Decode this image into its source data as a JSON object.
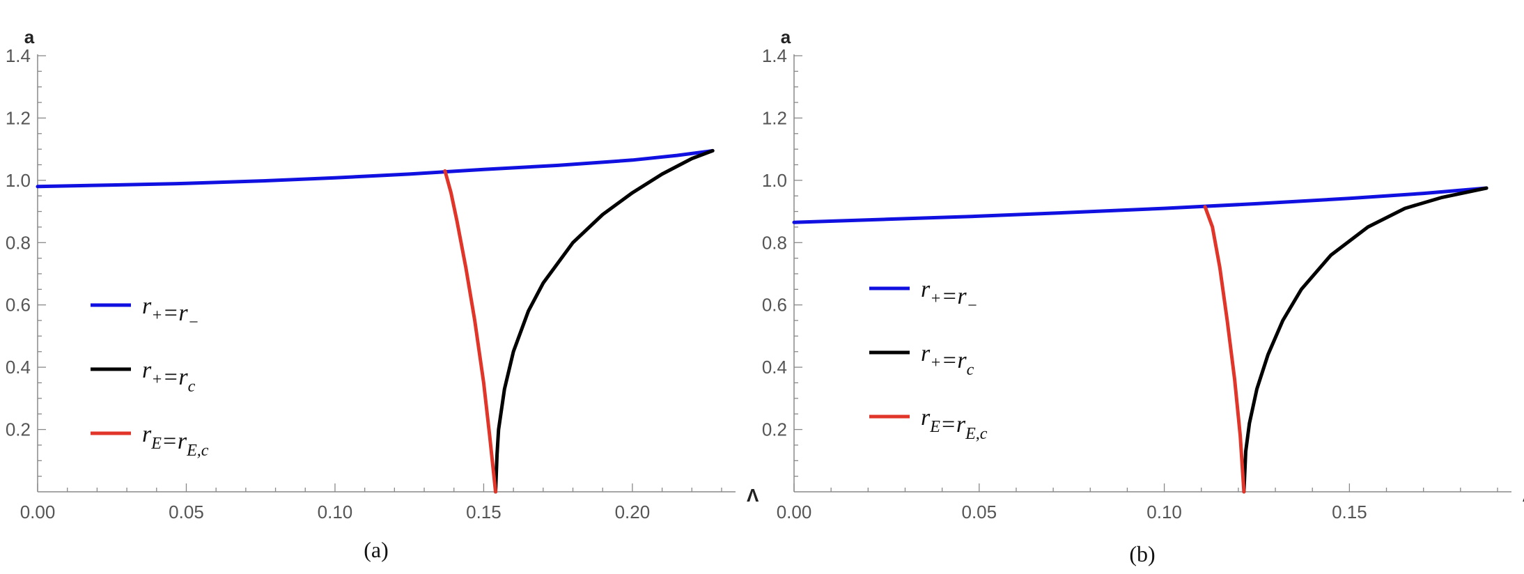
{
  "chart_data": [
    {
      "type": "line",
      "panel_label": "(a)",
      "xlabel": "Λ",
      "ylabel": "a",
      "xlim": [
        0,
        0.23
      ],
      "ylim": [
        0,
        1.4
      ],
      "x_ticks": [
        "0.00",
        "0.05",
        "0.10",
        "0.15",
        "0.20"
      ],
      "x_tick_values": [
        0,
        0.05,
        0.1,
        0.15,
        0.2
      ],
      "y_ticks": [
        "0.2",
        "0.4",
        "0.6",
        "0.8",
        "1.0",
        "1.2",
        "1.4"
      ],
      "y_tick_values": [
        0.2,
        0.4,
        0.6,
        0.8,
        1.0,
        1.2,
        1.4
      ],
      "grid": false,
      "legend_placement": "center-left",
      "series": [
        {
          "legend": {
            "main1": "r",
            "sub1": "+",
            "mid": "=r",
            "sub2": "−"
          },
          "color": "#1010e0",
          "x": [
            0.0,
            0.025,
            0.05,
            0.075,
            0.1,
            0.125,
            0.15,
            0.175,
            0.2,
            0.215,
            0.227
          ],
          "y": [
            0.98,
            0.985,
            0.99,
            0.998,
            1.008,
            1.02,
            1.035,
            1.048,
            1.065,
            1.08,
            1.095
          ]
        },
        {
          "legend": {
            "main1": "r",
            "sub1": "+",
            "mid": "=r",
            "sub2": "c"
          },
          "color": "#000000",
          "x": [
            0.154,
            0.1545,
            0.155,
            0.157,
            0.16,
            0.165,
            0.17,
            0.18,
            0.19,
            0.2,
            0.21,
            0.22,
            0.227
          ],
          "y": [
            0.0,
            0.12,
            0.2,
            0.33,
            0.45,
            0.58,
            0.67,
            0.8,
            0.89,
            0.96,
            1.02,
            1.07,
            1.095
          ]
        },
        {
          "legend": {
            "main1": "r",
            "sub1": "E",
            "mid": "=r",
            "sub2": "E,c"
          },
          "color": "#e03528",
          "x": [
            0.154,
            0.152,
            0.15,
            0.147,
            0.144,
            0.141,
            0.139,
            0.137
          ],
          "y": [
            0.0,
            0.18,
            0.35,
            0.55,
            0.72,
            0.87,
            0.96,
            1.03
          ]
        }
      ]
    },
    {
      "type": "line",
      "panel_label": "(b)",
      "xlabel": "Λ",
      "ylabel": "a",
      "xlim": [
        0,
        0.19
      ],
      "ylim": [
        0,
        1.4
      ],
      "x_ticks": [
        "0.00",
        "0.05",
        "0.10",
        "0.15"
      ],
      "x_tick_values": [
        0,
        0.05,
        0.1,
        0.15
      ],
      "y_ticks": [
        "0.2",
        "0.4",
        "0.6",
        "0.8",
        "1.0",
        "1.2",
        "1.4"
      ],
      "y_tick_values": [
        0.2,
        0.4,
        0.6,
        0.8,
        1.0,
        1.2,
        1.4
      ],
      "grid": false,
      "legend_placement": "center-left",
      "series": [
        {
          "legend": {
            "main1": "r",
            "sub1": "+",
            "mid": "=r",
            "sub2": "−"
          },
          "color": "#1010e0",
          "x": [
            0.0,
            0.025,
            0.05,
            0.075,
            0.1,
            0.125,
            0.15,
            0.17,
            0.187
          ],
          "y": [
            0.865,
            0.875,
            0.885,
            0.897,
            0.91,
            0.925,
            0.942,
            0.958,
            0.975
          ]
        },
        {
          "legend": {
            "main1": "r",
            "sub1": "+",
            "mid": "=r",
            "sub2": "c"
          },
          "color": "#000000",
          "x": [
            0.1215,
            0.122,
            0.123,
            0.125,
            0.128,
            0.132,
            0.137,
            0.145,
            0.155,
            0.165,
            0.175,
            0.187
          ],
          "y": [
            0.0,
            0.13,
            0.22,
            0.33,
            0.44,
            0.55,
            0.65,
            0.76,
            0.85,
            0.91,
            0.945,
            0.975
          ]
        },
        {
          "legend": {
            "main1": "r",
            "sub1": "E",
            "mid": "=r",
            "sub2": "E,c"
          },
          "color": "#e03528",
          "x": [
            0.1215,
            0.1205,
            0.119,
            0.117,
            0.115,
            0.113,
            0.111
          ],
          "y": [
            0.0,
            0.18,
            0.36,
            0.55,
            0.72,
            0.85,
            0.915
          ]
        }
      ]
    }
  ]
}
